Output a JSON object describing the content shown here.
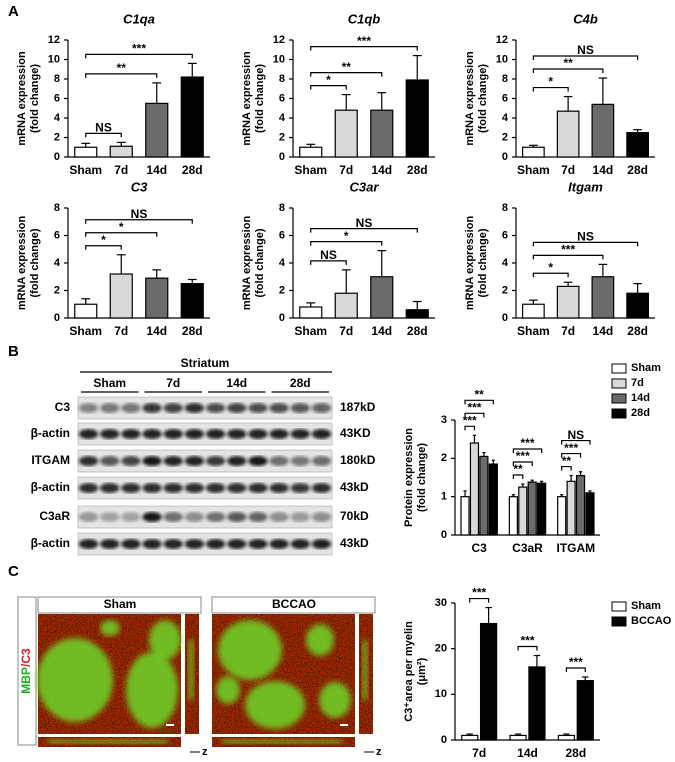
{
  "figure": {
    "panel_labels": [
      "A",
      "B",
      "C"
    ],
    "blot": {
      "region": "Striatum",
      "groups": [
        "Sham",
        "7d",
        "14d",
        "28d"
      ],
      "rows": [
        [
          "C3",
          "187kD"
        ],
        [
          "β-actin",
          "43KD"
        ],
        [
          "ITGAM",
          "180kD"
        ],
        [
          "β-actin",
          "43kD"
        ],
        [
          "C3aR",
          "70kD"
        ],
        [
          "β-actin",
          "43kD"
        ]
      ]
    },
    "images": {
      "stain": [
        "MBP",
        "/C3"
      ],
      "groups": [
        "Sham",
        "BCCAO"
      ],
      "axis": "z"
    }
  },
  "chart_data": [
    {
      "type": "bar",
      "title": "C1qa",
      "y_label": [
        "mRNA expression",
        "(fold change)"
      ],
      "categories": [
        "Sham",
        "7d",
        "14d",
        "28d"
      ],
      "values": [
        1.0,
        1.1,
        5.5,
        8.2
      ],
      "errors": [
        0.4,
        0.4,
        2.1,
        1.4
      ],
      "colors": [
        "#ffffff",
        "#d9d9d9",
        "#6b6b6b",
        "#000000"
      ],
      "ylim": [
        0,
        12
      ],
      "yticks": [
        0,
        2,
        4,
        6,
        8,
        10,
        12
      ],
      "annotations": [
        "NS",
        "**",
        "***"
      ]
    },
    {
      "type": "bar",
      "title": "C1qb",
      "y_label": [
        "mRNA expression",
        "(fold change)"
      ],
      "categories": [
        "Sham",
        "7d",
        "14d",
        "28d"
      ],
      "values": [
        1.0,
        4.8,
        4.8,
        7.9
      ],
      "errors": [
        0.3,
        1.6,
        1.8,
        2.5
      ],
      "colors": [
        "#ffffff",
        "#d9d9d9",
        "#6b6b6b",
        "#000000"
      ],
      "ylim": [
        0,
        12
      ],
      "yticks": [
        0,
        2,
        4,
        6,
        8,
        10,
        12
      ],
      "annotations": [
        "*",
        "**",
        "***"
      ]
    },
    {
      "type": "bar",
      "title": "C4b",
      "y_label": [
        "mRNA expression",
        "(fold change)"
      ],
      "categories": [
        "Sham",
        "7d",
        "14d",
        "28d"
      ],
      "values": [
        1.0,
        4.7,
        5.4,
        2.5
      ],
      "errors": [
        0.2,
        1.5,
        2.7,
        0.3
      ],
      "colors": [
        "#ffffff",
        "#d9d9d9",
        "#6b6b6b",
        "#000000"
      ],
      "ylim": [
        0,
        12
      ],
      "yticks": [
        0,
        2,
        4,
        6,
        8,
        10,
        12
      ],
      "annotations": [
        "*",
        "**",
        "NS"
      ]
    },
    {
      "type": "bar",
      "title": "C3",
      "y_label": [
        "mRNA expression",
        "(fold change)"
      ],
      "categories": [
        "Sham",
        "7d",
        "14d",
        "28d"
      ],
      "values": [
        1.0,
        3.2,
        2.9,
        2.5
      ],
      "errors": [
        0.4,
        1.4,
        0.6,
        0.3
      ],
      "colors": [
        "#ffffff",
        "#d9d9d9",
        "#6b6b6b",
        "#000000"
      ],
      "ylim": [
        0,
        8
      ],
      "yticks": [
        0,
        2,
        4,
        6,
        8
      ],
      "annotations": [
        "*",
        "*",
        "NS"
      ]
    },
    {
      "type": "bar",
      "title": "C3ar",
      "y_label": [
        "mRNA expression",
        "(fold change)"
      ],
      "categories": [
        "Sham",
        "7d",
        "14d",
        "28d"
      ],
      "values": [
        0.8,
        1.8,
        3.0,
        0.6
      ],
      "errors": [
        0.3,
        1.7,
        1.9,
        0.6
      ],
      "colors": [
        "#ffffff",
        "#d9d9d9",
        "#6b6b6b",
        "#000000"
      ],
      "ylim": [
        0,
        8
      ],
      "yticks": [
        0,
        2,
        4,
        6,
        8
      ],
      "annotations": [
        "NS",
        "*",
        "NS"
      ]
    },
    {
      "type": "bar",
      "title": "Itgam",
      "y_label": [
        "mRNA expression",
        "(fold change)"
      ],
      "categories": [
        "Sham",
        "7d",
        "14d",
        "28d"
      ],
      "values": [
        1.0,
        2.3,
        3.0,
        1.8
      ],
      "errors": [
        0.3,
        0.3,
        0.9,
        0.7
      ],
      "colors": [
        "#ffffff",
        "#d9d9d9",
        "#6b6b6b",
        "#000000"
      ],
      "ylim": [
        0,
        8
      ],
      "yticks": [
        0,
        2,
        4,
        6,
        8
      ],
      "annotations": [
        "*",
        "***",
        "NS"
      ]
    },
    {
      "type": "grouped_bar",
      "y_label": [
        "Protein expression",
        "(fold change)"
      ],
      "categories": [
        "C3",
        "C3aR",
        "ITGAM"
      ],
      "series": [
        {
          "name": "Sham",
          "color": "#ffffff",
          "values": [
            1.0,
            1.0,
            1.0
          ],
          "errors": [
            0.15,
            0.05,
            0.05
          ]
        },
        {
          "name": "7d",
          "color": "#d9d9d9",
          "values": [
            2.4,
            1.25,
            1.4
          ],
          "errors": [
            0.2,
            0.08,
            0.15
          ]
        },
        {
          "name": "14d",
          "color": "#6b6b6b",
          "values": [
            2.05,
            1.38,
            1.55
          ],
          "errors": [
            0.1,
            0.05,
            0.1
          ]
        },
        {
          "name": "28d",
          "color": "#000000",
          "values": [
            1.85,
            1.35,
            1.1
          ],
          "errors": [
            0.1,
            0.05,
            0.05
          ]
        }
      ],
      "ylim": [
        0,
        3
      ],
      "yticks": [
        0,
        1,
        2,
        3
      ],
      "legend": "right",
      "annotations": [
        [
          "***",
          "***",
          "**"
        ],
        [
          "**",
          "***",
          "***"
        ],
        [
          "**",
          "***",
          "NS"
        ]
      ]
    },
    {
      "type": "grouped_bar",
      "y_label": [
        "C3⁺area per myelin",
        "(μm²)"
      ],
      "categories": [
        "7d",
        "14d",
        "28d"
      ],
      "series": [
        {
          "name": "Sham",
          "color": "#ffffff",
          "values": [
            1.0,
            1.0,
            1.0
          ],
          "errors": [
            0.3,
            0.3,
            0.3
          ]
        },
        {
          "name": "BCCAO",
          "color": "#000000",
          "values": [
            25.5,
            16.0,
            13.0
          ],
          "errors": [
            3.5,
            2.5,
            0.8
          ]
        }
      ],
      "ylim": [
        0,
        30
      ],
      "yticks": [
        0,
        10,
        20,
        30
      ],
      "legend": "right",
      "annotations": [
        [
          "***"
        ],
        [
          "***"
        ],
        [
          "***"
        ]
      ]
    }
  ]
}
